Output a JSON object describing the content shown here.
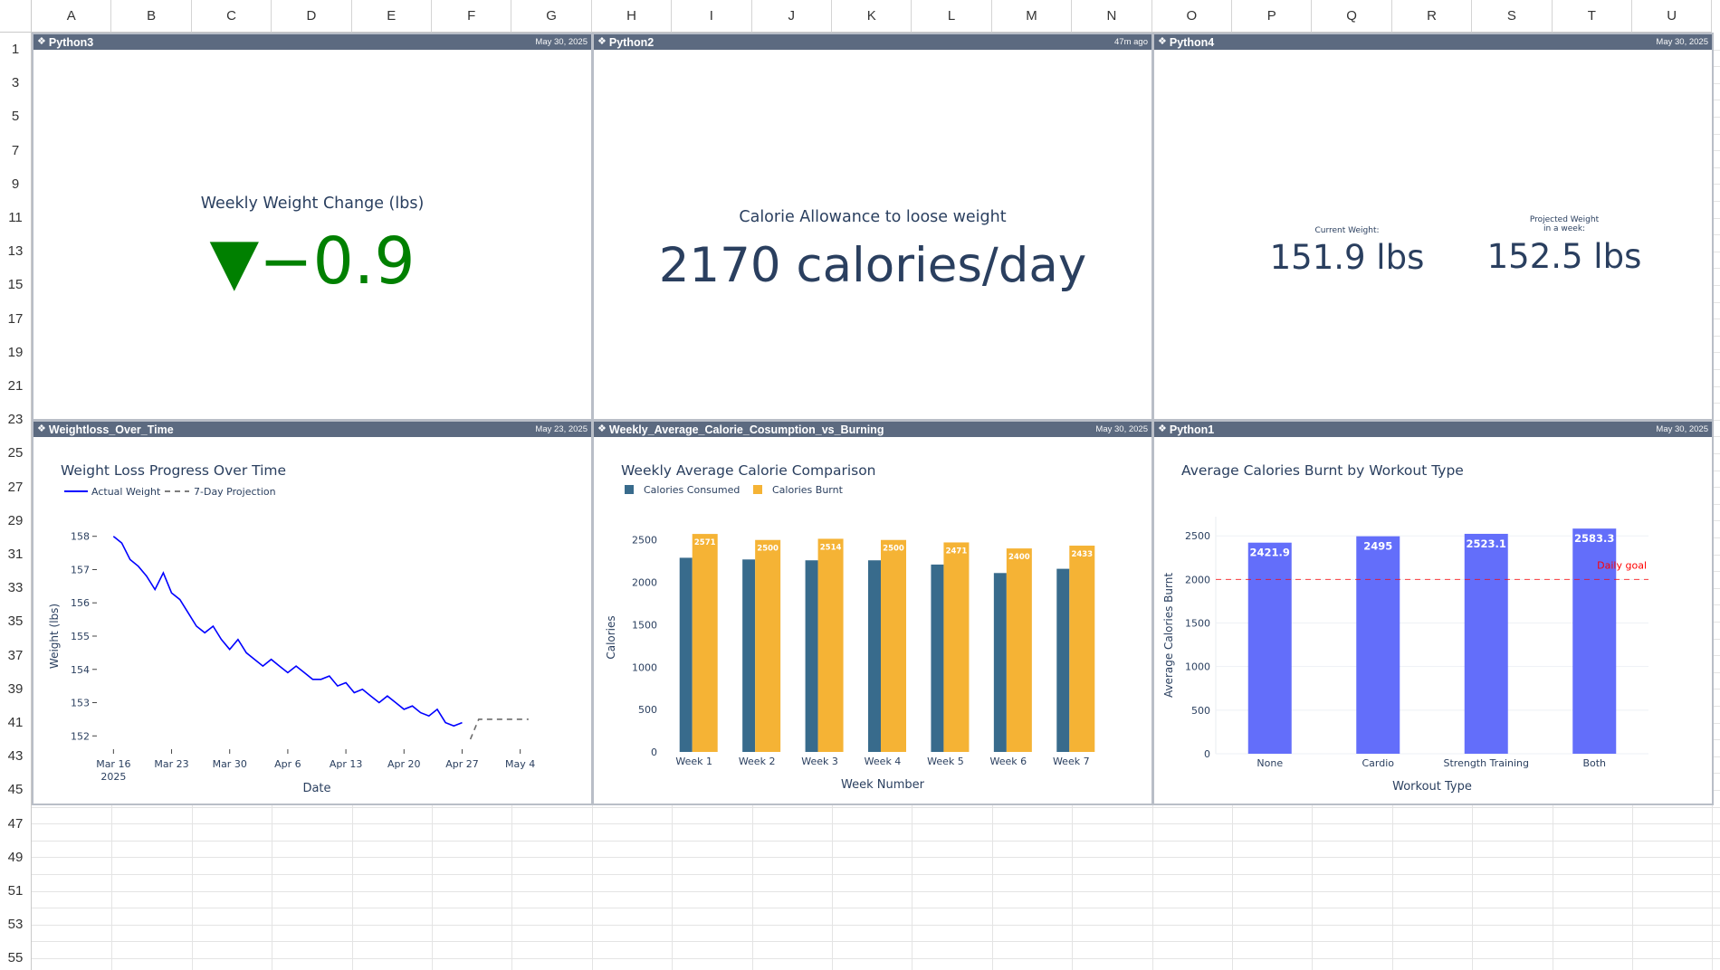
{
  "sheet": {
    "columns": [
      "A",
      "B",
      "C",
      "D",
      "E",
      "F",
      "G",
      "H",
      "I",
      "J",
      "K",
      "L",
      "M",
      "N",
      "O",
      "P",
      "Q",
      "R",
      "S",
      "T",
      "U"
    ],
    "row_labels": [
      "1",
      "3",
      "5",
      "7",
      "9",
      "11",
      "13",
      "15",
      "17",
      "19",
      "21",
      "23",
      "25",
      "27",
      "29",
      "31",
      "33",
      "35",
      "37",
      "39",
      "41",
      "43",
      "45",
      "47",
      "49",
      "51",
      "53",
      "55"
    ]
  },
  "panels": {
    "p1": {
      "title": "Python3",
      "date": "May 30, 2025",
      "icon": "python-icon"
    },
    "p2": {
      "title": "Python2",
      "date": "47m ago",
      "icon": "python-icon"
    },
    "p3": {
      "title": "Python4",
      "date": "May 30, 2025",
      "icon": "python-icon"
    },
    "p4": {
      "title": "Weightloss_Over_Time",
      "date": "May 23, 2025",
      "icon": "python-icon"
    },
    "p5": {
      "title": "Weekly_Average_Calorie_Cosumption_vs_Burning",
      "date": "May 30, 2025",
      "icon": "python-icon"
    },
    "p6": {
      "title": "Python1",
      "date": "May 30, 2025",
      "icon": "python-icon"
    }
  },
  "indicators": {
    "weekly_change": {
      "title": "Weekly Weight Change (lbs)",
      "value": "▼−0.9",
      "color": "#008000"
    },
    "calorie_allowance": {
      "title": "Calorie Allowance to loose weight",
      "value": "2170 calories/day"
    },
    "weights": {
      "current_label": "Current Weight:",
      "current_value": "151.9 lbs",
      "projected_label_1": "Projected Weight",
      "projected_label_2": "in a week:",
      "projected_value": "152.5 lbs"
    }
  },
  "chart_data": [
    {
      "type": "line",
      "title": "Weight Loss Progress Over Time",
      "xlabel": "Date",
      "ylabel": "Weight (lbs)",
      "x_ticks": [
        "Mar 16\n2025",
        "Mar 23",
        "Mar 30",
        "Apr 6",
        "Apr 13",
        "Apr 20",
        "Apr 27",
        "May 4"
      ],
      "y_ticks": [
        152,
        153,
        154,
        155,
        156,
        157,
        158
      ],
      "ylim": [
        151.6,
        158.4
      ],
      "xlim": [
        "2025-03-14",
        "2025-05-06"
      ],
      "series": [
        {
          "name": "Actual Weight",
          "color": "#0000ff",
          "dash": "solid",
          "x": [
            "2025-03-16",
            "2025-03-17",
            "2025-03-18",
            "2025-03-19",
            "2025-03-20",
            "2025-03-21",
            "2025-03-22",
            "2025-03-23",
            "2025-03-24",
            "2025-03-25",
            "2025-03-26",
            "2025-03-27",
            "2025-03-28",
            "2025-03-29",
            "2025-03-30",
            "2025-03-31",
            "2025-04-01",
            "2025-04-02",
            "2025-04-03",
            "2025-04-04",
            "2025-04-05",
            "2025-04-06",
            "2025-04-07",
            "2025-04-08",
            "2025-04-09",
            "2025-04-10",
            "2025-04-11",
            "2025-04-12",
            "2025-04-13",
            "2025-04-14",
            "2025-04-15",
            "2025-04-16",
            "2025-04-17",
            "2025-04-18",
            "2025-04-19",
            "2025-04-20",
            "2025-04-21",
            "2025-04-22",
            "2025-04-23",
            "2025-04-24",
            "2025-04-25",
            "2025-04-26",
            "2025-04-27"
          ],
          "values": [
            158.0,
            157.8,
            157.3,
            157.1,
            156.8,
            156.4,
            156.9,
            156.3,
            156.1,
            155.7,
            155.3,
            155.1,
            155.3,
            154.9,
            154.6,
            154.9,
            154.5,
            154.3,
            154.1,
            154.3,
            154.1,
            153.9,
            154.1,
            153.9,
            153.7,
            153.7,
            153.8,
            153.5,
            153.6,
            153.3,
            153.4,
            153.2,
            153.0,
            153.2,
            153.0,
            152.8,
            152.9,
            152.7,
            152.6,
            152.8,
            152.4,
            152.3,
            152.4
          ]
        },
        {
          "name": "7-Day Projection",
          "color": "#6b6b6b",
          "dash": "dash",
          "x": [
            "2025-04-28",
            "2025-04-29",
            "2025-04-30",
            "2025-05-01",
            "2025-05-02",
            "2025-05-03",
            "2025-05-04",
            "2025-05-05"
          ],
          "values": [
            151.9,
            152.5,
            152.5,
            152.5,
            152.5,
            152.5,
            152.5,
            152.5
          ]
        }
      ]
    },
    {
      "type": "bar",
      "title": "Weekly Average Calorie Comparison",
      "xlabel": "Week Number",
      "ylabel": "Calories",
      "categories": [
        "Week 1",
        "Week 2",
        "Week 3",
        "Week 4",
        "Week 5",
        "Week 6",
        "Week 7"
      ],
      "ylim": [
        0,
        2700
      ],
      "y_ticks": [
        0,
        500,
        1000,
        1500,
        2000,
        2500
      ],
      "series": [
        {
          "name": "Calories Consumed",
          "color": "#386b8c",
          "values": [
            2290,
            2270,
            2260,
            2260,
            2210,
            2110,
            2160
          ]
        },
        {
          "name": "Calories Burnt",
          "color": "#f5b335",
          "values": [
            2571,
            2500,
            2514,
            2500,
            2471,
            2400,
            2433
          ],
          "labels": [
            "2571",
            "2500",
            "2514",
            "2500",
            "2471",
            "2400",
            "2433"
          ]
        }
      ]
    },
    {
      "type": "bar",
      "title": "Average Calories Burnt by Workout Type",
      "xlabel": "Workout Type",
      "ylabel": "Average Calories Burnt",
      "categories": [
        "None",
        "Cardio",
        "Strength Training",
        "Both"
      ],
      "ylim": [
        0,
        2720
      ],
      "y_ticks": [
        0,
        500,
        1000,
        1500,
        2000,
        2500
      ],
      "series": [
        {
          "name": "",
          "color": "#636efa",
          "values": [
            2421.9,
            2495,
            2523.1,
            2583.3
          ],
          "labels": [
            "2421.9",
            "2495",
            "2523.1",
            "2583.3"
          ]
        }
      ],
      "reference_line": {
        "value": 2000,
        "label": "Daily goal",
        "color": "#ff0000"
      }
    }
  ]
}
